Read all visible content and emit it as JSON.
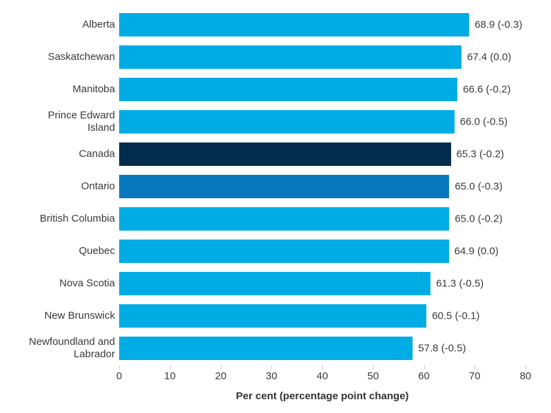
{
  "chart_data": {
    "type": "bar",
    "orientation": "horizontal",
    "title": "",
    "xlabel": "Per cent (percentage point change)",
    "ylabel": "",
    "xlim": [
      0,
      80
    ],
    "x_ticks": [
      "0",
      "10",
      "20",
      "30",
      "40",
      "50",
      "60",
      "70",
      "80"
    ],
    "grid": false,
    "legend": null,
    "bar_colors": {
      "default": "#00ace4",
      "canada_highlight": "#042d4d",
      "ontario_highlight": "#0a78be"
    },
    "rows": [
      {
        "label": "Alberta",
        "value": 68.9,
        "change": -0.3,
        "value_label": "68.9 (-0.3)",
        "color": "#00ace4"
      },
      {
        "label": "Saskatchewan",
        "value": 67.4,
        "change": 0.0,
        "value_label": "67.4 (0.0)",
        "color": "#00ace4"
      },
      {
        "label": "Manitoba",
        "value": 66.6,
        "change": -0.2,
        "value_label": "66.6 (-0.2)",
        "color": "#00ace4"
      },
      {
        "label": "Prince Edward\nIsland",
        "value": 66.0,
        "change": -0.5,
        "value_label": "66.0 (-0.5)",
        "color": "#00ace4"
      },
      {
        "label": "Canada",
        "value": 65.3,
        "change": -0.2,
        "value_label": "65.3 (-0.2)",
        "color": "#042d4d"
      },
      {
        "label": "Ontario",
        "value": 65.0,
        "change": -0.3,
        "value_label": "65.0 (-0.3)",
        "color": "#0a78be"
      },
      {
        "label": "British Columbia",
        "value": 65.0,
        "change": -0.2,
        "value_label": "65.0 (-0.2)",
        "color": "#00ace4"
      },
      {
        "label": "Quebec",
        "value": 64.9,
        "change": 0.0,
        "value_label": "64.9 (0.0)",
        "color": "#00ace4"
      },
      {
        "label": "Nova Scotia",
        "value": 61.3,
        "change": -0.5,
        "value_label": "61.3 (-0.5)",
        "color": "#00ace4"
      },
      {
        "label": "New Brunswick",
        "value": 60.5,
        "change": -0.1,
        "value_label": "60.5 (-0.1)",
        "color": "#00ace4"
      },
      {
        "label": "Newfoundland and\nLabrador",
        "value": 57.8,
        "change": -0.5,
        "value_label": "57.8 (-0.5)",
        "color": "#00ace4"
      }
    ]
  }
}
